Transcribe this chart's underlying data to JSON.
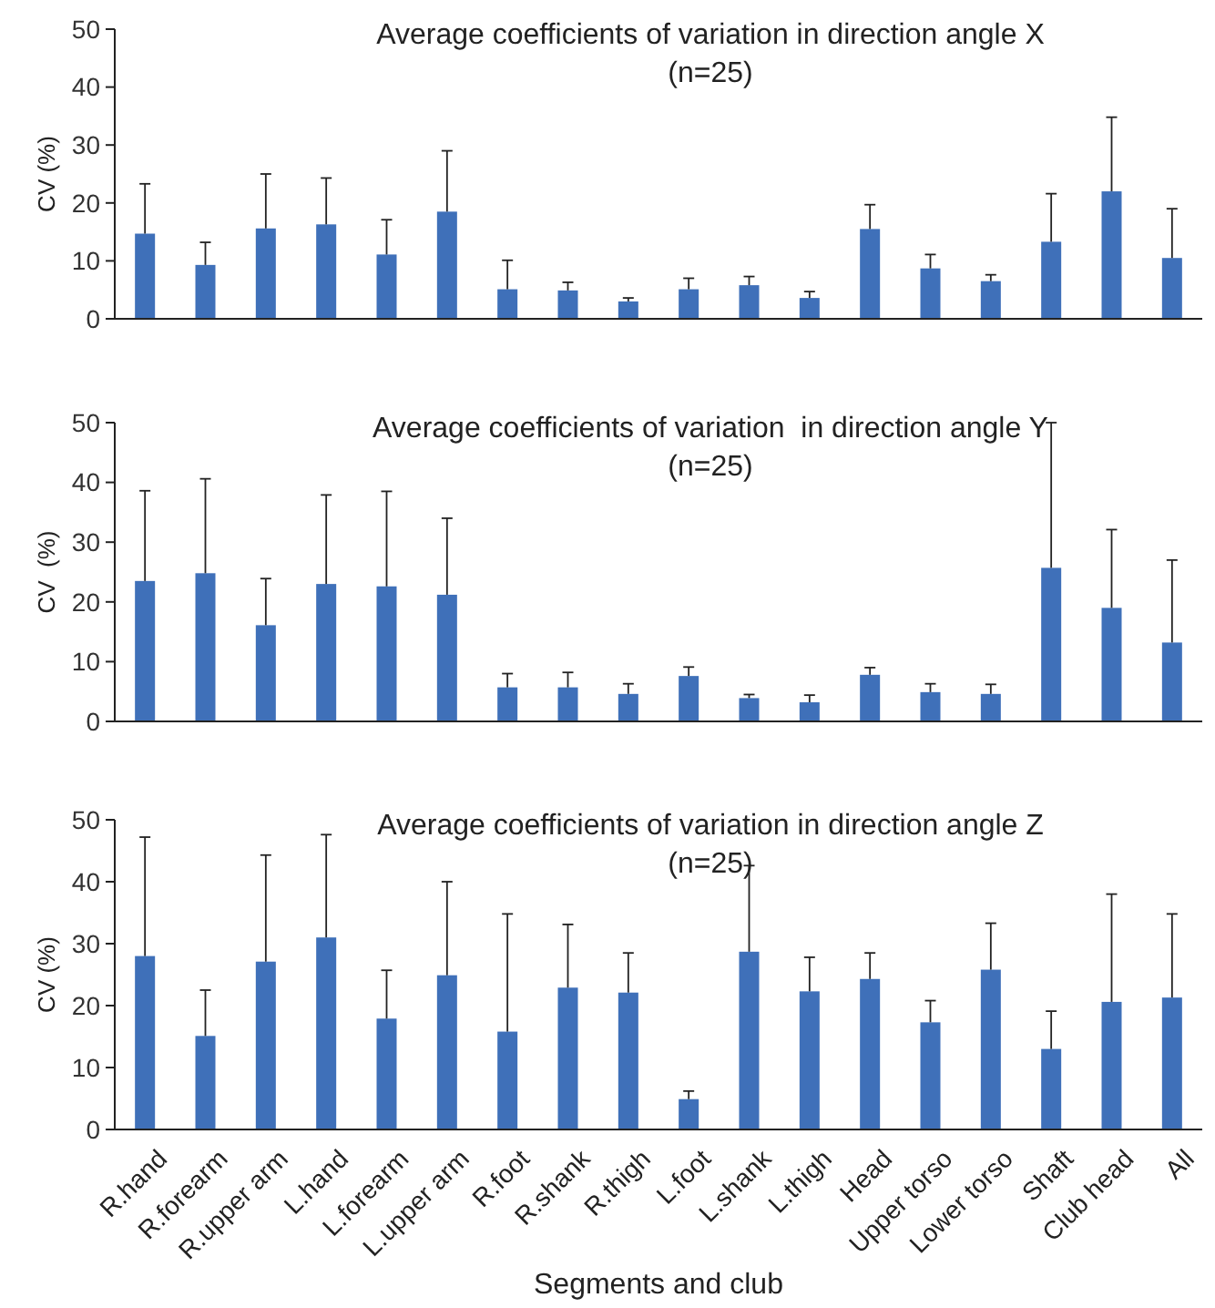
{
  "chart_data": [
    {
      "type": "bar",
      "title": "Average coefficients of variation in direction angle X",
      "subtitle": "(n=25)",
      "ylabel": "CV (%)",
      "categories": [
        null,
        null,
        null,
        null,
        null,
        null,
        null,
        null,
        null,
        null,
        null,
        null,
        null,
        null,
        null,
        null,
        null,
        null
      ],
      "values": [
        14.7,
        9.3,
        15.6,
        16.3,
        11.1,
        18.5,
        5.1,
        4.9,
        3.0,
        5.1,
        5.8,
        3.6,
        15.5,
        8.7,
        6.5,
        13.3,
        22,
        10.5
      ],
      "errors": [
        [
          14.7,
          23.3
        ],
        [
          9.3,
          13.2
        ],
        [
          15.6,
          25
        ],
        [
          16.3,
          24.3
        ],
        [
          11.1,
          17.1
        ],
        [
          18.5,
          29
        ],
        [
          5.1,
          10.1
        ],
        [
          4.9,
          6.3
        ],
        [
          3.0,
          3.6
        ],
        [
          5.1,
          7
        ],
        [
          5.8,
          7.3
        ],
        [
          3.6,
          4.7
        ],
        [
          15.5,
          19.7
        ],
        [
          8.7,
          11.1
        ],
        [
          6.5,
          7.6
        ],
        [
          13.3,
          21.6
        ],
        [
          22,
          34.8
        ],
        [
          10.5,
          19
        ]
      ],
      "color": "#3f70b9",
      "ylim": [
        0,
        50
      ],
      "yticks": [
        0,
        10,
        20,
        30,
        40,
        50
      ]
    },
    {
      "type": "bar",
      "title": "Average coefficients of variation  in direction angle Y",
      "subtitle": "(n=25)",
      "ylabel": "CV  (%)",
      "categories": [
        null,
        null,
        null,
        null,
        null,
        null,
        null,
        null,
        null,
        null,
        null,
        null,
        null,
        null,
        null,
        null,
        null,
        null
      ],
      "values": [
        23.5,
        24.8,
        16.1,
        23,
        22.6,
        21.2,
        5.7,
        5.7,
        4.6,
        7.6,
        3.9,
        3.2,
        7.8,
        4.9,
        4.6,
        25.7,
        19,
        13.2
      ],
      "errors": [
        [
          23.5,
          38.6
        ],
        [
          24.8,
          40.6
        ],
        [
          16.1,
          23.9
        ],
        [
          23,
          37.9
        ],
        [
          22.6,
          38.5
        ],
        [
          21.2,
          34
        ],
        [
          5.7,
          8
        ],
        [
          5.7,
          8.2
        ],
        [
          4.6,
          6.3
        ],
        [
          7.6,
          9.1
        ],
        [
          3.9,
          4.5
        ],
        [
          3.2,
          4.4
        ],
        [
          7.8,
          9
        ],
        [
          4.9,
          6.3
        ],
        [
          4.6,
          6.2
        ],
        [
          25.7,
          50
        ],
        [
          19,
          32.1
        ],
        [
          13.2,
          27
        ]
      ],
      "color": "#3f70b9",
      "ylim": [
        0,
        50
      ],
      "yticks": [
        0,
        10,
        20,
        30,
        40,
        50
      ]
    },
    {
      "type": "bar",
      "title": "Average coefficients of variation in direction angle Z",
      "subtitle": "(n=25)",
      "ylabel": "CV (%)",
      "xlabel": "Segments and club",
      "categories": [
        "R.hand",
        "R.forearm",
        "R.upper arm",
        "L.hand",
        "L.forearm",
        "L.upper arm",
        "R.foot",
        "R.shank",
        "R.thigh",
        "L.foot",
        "L.shank",
        "L.thigh",
        "Head",
        "Upper torso",
        "Lower torso",
        "Shaft",
        "Club head",
        "All"
      ],
      "values": [
        28,
        15.1,
        27.1,
        31,
        17.9,
        24.9,
        15.8,
        22.9,
        22.1,
        4.9,
        28.7,
        22.3,
        24.3,
        17.3,
        25.8,
        13,
        20.6,
        21.3
      ],
      "errors": [
        [
          28,
          47.2
        ],
        [
          15.1,
          22.5
        ],
        [
          27.1,
          44.3
        ],
        [
          31,
          47.6
        ],
        [
          17.9,
          25.7
        ],
        [
          24.9,
          40
        ],
        [
          15.8,
          34.8
        ],
        [
          22.9,
          33.1
        ],
        [
          22.1,
          28.5
        ],
        [
          4.9,
          6.2
        ],
        [
          28.7,
          42.6
        ],
        [
          22.3,
          27.8
        ],
        [
          24.3,
          28.5
        ],
        [
          17.3,
          20.8
        ],
        [
          25.8,
          33.3
        ],
        [
          13,
          19.1
        ],
        [
          20.6,
          38
        ],
        [
          21.3,
          34.8
        ]
      ],
      "color": "#3f70b9",
      "ylim": [
        0,
        50
      ],
      "yticks": [
        0,
        10,
        20,
        30,
        40,
        50
      ]
    }
  ]
}
